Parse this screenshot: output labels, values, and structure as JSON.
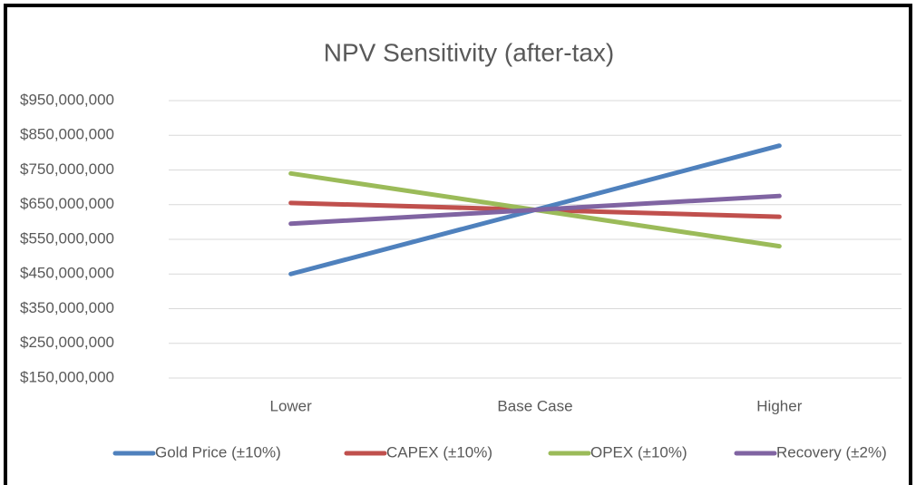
{
  "chart_data": {
    "type": "line",
    "title": "NPV Sensitivity (after-tax)",
    "categories": [
      "Lower",
      "Base Case",
      "Higher"
    ],
    "series": [
      {
        "name": "Gold Price (±10%)",
        "color": "#4f81bd",
        "values": [
          450000000,
          635000000,
          820000000
        ]
      },
      {
        "name": "CAPEX (±10%)",
        "color": "#c0504d",
        "values": [
          655000000,
          635000000,
          615000000
        ]
      },
      {
        "name": "OPEX (±10%)",
        "color": "#9bbb59",
        "values": [
          740000000,
          635000000,
          530000000
        ]
      },
      {
        "name": "Recovery (±2%)",
        "color": "#8064a2",
        "values": [
          595000000,
          635000000,
          675000000
        ]
      }
    ],
    "ylim": [
      150000000,
      950000000
    ],
    "yticks": [
      {
        "value": 150000000,
        "label": "$150,000,000"
      },
      {
        "value": 250000000,
        "label": "$250,000,000"
      },
      {
        "value": 350000000,
        "label": "$350,000,000"
      },
      {
        "value": 450000000,
        "label": "$450,000,000"
      },
      {
        "value": 550000000,
        "label": "$550,000,000"
      },
      {
        "value": 650000000,
        "label": "$650,000,000"
      },
      {
        "value": 750000000,
        "label": "$750,000,000"
      },
      {
        "value": 850000000,
        "label": "$850,000,000"
      },
      {
        "value": 950000000,
        "label": "$950,000,000"
      }
    ],
    "grid": true,
    "legend": "bottom"
  }
}
